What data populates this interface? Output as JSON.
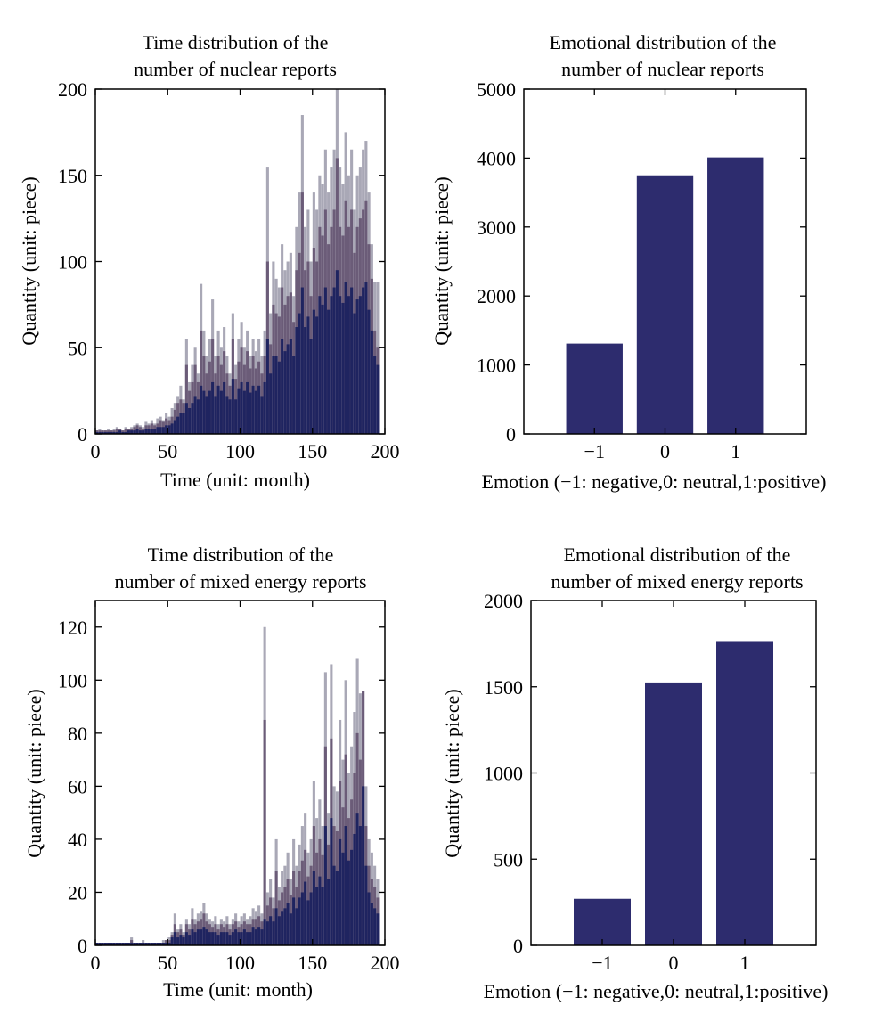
{
  "colors": {
    "bar": "#2d2c6e",
    "hist_front": "#1f2460",
    "hist_mid": "#6b5c78",
    "hist_back": "#a9a8b6"
  },
  "chart_data": [
    {
      "id": "nuclear-time",
      "type": "bar",
      "title": [
        "Time distribution of the",
        "number of nuclear reports"
      ],
      "xlabel": "Time (unit: month)",
      "ylabel": "Quantity (unit: piece)",
      "xlim": [
        0,
        200
      ],
      "ylim": [
        0,
        200
      ],
      "xticks": [
        0,
        50,
        100,
        150,
        200
      ],
      "yticks": [
        0,
        50,
        100,
        150,
        200
      ],
      "xtick_labels": [
        "0",
        "50",
        "100",
        "150",
        "200"
      ],
      "ytick_labels": [
        "0",
        "50",
        "100",
        "150",
        "200"
      ],
      "x": [
        1,
        3,
        5,
        7,
        9,
        11,
        13,
        15,
        17,
        19,
        21,
        23,
        25,
        27,
        29,
        31,
        33,
        35,
        37,
        39,
        41,
        43,
        45,
        47,
        49,
        51,
        53,
        55,
        57,
        59,
        61,
        63,
        65,
        67,
        69,
        71,
        73,
        75,
        77,
        79,
        81,
        83,
        85,
        87,
        89,
        91,
        93,
        95,
        97,
        99,
        101,
        103,
        105,
        107,
        109,
        111,
        113,
        115,
        117,
        119,
        121,
        123,
        125,
        127,
        129,
        131,
        133,
        135,
        137,
        139,
        141,
        143,
        145,
        147,
        149,
        151,
        153,
        155,
        157,
        159,
        161,
        163,
        165,
        167,
        169,
        171,
        173,
        175,
        177,
        179,
        181,
        183,
        185,
        187,
        189,
        191,
        193,
        195
      ],
      "series": [
        {
          "name": "back",
          "values": [
            2,
            3,
            2,
            2,
            3,
            2,
            3,
            4,
            3,
            2,
            4,
            3,
            4,
            5,
            6,
            5,
            4,
            7,
            6,
            8,
            6,
            9,
            10,
            8,
            12,
            10,
            15,
            18,
            22,
            28,
            20,
            55,
            30,
            40,
            50,
            35,
            87,
            60,
            45,
            55,
            78,
            45,
            60,
            50,
            62,
            45,
            35,
            70,
            40,
            55,
            65,
            50,
            60,
            45,
            55,
            48,
            55,
            45,
            60,
            155,
            70,
            100,
            90,
            85,
            110,
            95,
            100,
            105,
            80,
            120,
            140,
            185,
            120,
            130,
            100,
            140,
            130,
            150,
            145,
            165,
            140,
            155,
            165,
            200,
            155,
            145,
            175,
            150,
            165,
            130,
            150,
            155,
            165,
            170,
            140,
            110,
            88,
            88
          ]
        },
        {
          "name": "mid",
          "values": [
            2,
            2,
            2,
            2,
            2,
            2,
            2,
            3,
            3,
            2,
            3,
            3,
            3,
            4,
            5,
            4,
            3,
            5,
            5,
            6,
            5,
            6,
            8,
            7,
            9,
            8,
            10,
            14,
            18,
            20,
            18,
            40,
            25,
            30,
            40,
            30,
            60,
            45,
            35,
            42,
            55,
            35,
            45,
            40,
            48,
            35,
            28,
            55,
            32,
            42,
            50,
            40,
            48,
            38,
            45,
            38,
            42,
            35,
            45,
            100,
            52,
            75,
            70,
            68,
            85,
            75,
            80,
            82,
            65,
            95,
            105,
            140,
            95,
            100,
            80,
            108,
            100,
            120,
            115,
            130,
            110,
            120,
            130,
            160,
            120,
            115,
            135,
            120,
            130,
            105,
            120,
            125,
            130,
            135,
            110,
            90,
            60,
            50
          ]
        },
        {
          "name": "front",
          "values": [
            1,
            1,
            1,
            1,
            1,
            1,
            1,
            1,
            2,
            1,
            1,
            2,
            2,
            2,
            3,
            2,
            2,
            3,
            3,
            3,
            3,
            4,
            4,
            4,
            5,
            5,
            6,
            8,
            10,
            12,
            12,
            18,
            15,
            18,
            22,
            20,
            28,
            25,
            22,
            25,
            30,
            22,
            28,
            25,
            30,
            22,
            20,
            32,
            20,
            26,
            30,
            25,
            30,
            24,
            28,
            25,
            28,
            22,
            30,
            55,
            35,
            45,
            45,
            42,
            55,
            48,
            52,
            55,
            45,
            62,
            70,
            85,
            62,
            68,
            55,
            72,
            68,
            80,
            75,
            85,
            72,
            80,
            85,
            95,
            80,
            76,
            88,
            80,
            85,
            70,
            78,
            80,
            85,
            88,
            72,
            60,
            45,
            40
          ]
        }
      ]
    },
    {
      "id": "nuclear-emotion",
      "type": "bar",
      "title": [
        "Emotional distribution of the",
        "number of nuclear reports"
      ],
      "xlabel": "Emotion (−1: negative,0: neutral,1:positive)",
      "ylabel": "Quantity (unit: piece)",
      "categories": [
        "−1",
        "0",
        "1"
      ],
      "values": [
        1310,
        3750,
        4010
      ],
      "ylim": [
        0,
        5000
      ],
      "yticks": [
        0,
        1000,
        2000,
        3000,
        4000,
        5000
      ],
      "ytick_labels": [
        "0",
        "1000",
        "2000",
        "3000",
        "4000",
        "5000"
      ]
    },
    {
      "id": "mixed-time",
      "type": "bar",
      "title": [
        "Time distribution of the",
        "number of mixed energy reports"
      ],
      "xlabel": "Time (unit: month)",
      "ylabel": "Quantity (unit: piece)",
      "xlim": [
        0,
        200
      ],
      "ylim": [
        0,
        130
      ],
      "xticks": [
        0,
        50,
        100,
        150,
        200
      ],
      "yticks": [
        0,
        20,
        40,
        60,
        80,
        100,
        120
      ],
      "xtick_labels": [
        "0",
        "50",
        "100",
        "150",
        "200"
      ],
      "ytick_labels": [
        "0",
        "20",
        "40",
        "60",
        "80",
        "100",
        "120"
      ],
      "x": [
        1,
        3,
        5,
        7,
        9,
        11,
        13,
        15,
        17,
        19,
        21,
        23,
        25,
        27,
        29,
        31,
        33,
        35,
        37,
        39,
        41,
        43,
        45,
        47,
        49,
        51,
        53,
        55,
        57,
        59,
        61,
        63,
        65,
        67,
        69,
        71,
        73,
        75,
        77,
        79,
        81,
        83,
        85,
        87,
        89,
        91,
        93,
        95,
        97,
        99,
        101,
        103,
        105,
        107,
        109,
        111,
        113,
        115,
        117,
        119,
        121,
        123,
        125,
        127,
        129,
        131,
        133,
        135,
        137,
        139,
        141,
        143,
        145,
        147,
        149,
        151,
        153,
        155,
        157,
        159,
        161,
        163,
        165,
        167,
        169,
        171,
        173,
        175,
        177,
        179,
        181,
        183,
        185,
        187,
        189,
        191,
        193,
        195
      ],
      "series": [
        {
          "name": "back",
          "values": [
            1,
            1,
            1,
            1,
            1,
            1,
            1,
            1,
            1,
            1,
            1,
            1,
            3,
            1,
            1,
            1,
            2,
            1,
            1,
            1,
            1,
            1,
            1,
            2,
            2,
            3,
            5,
            12,
            6,
            8,
            5,
            10,
            8,
            14,
            10,
            12,
            13,
            16,
            12,
            10,
            9,
            11,
            8,
            10,
            9,
            11,
            8,
            10,
            12,
            9,
            11,
            12,
            10,
            11,
            14,
            13,
            15,
            12,
            120,
            20,
            25,
            18,
            40,
            22,
            28,
            30,
            35,
            25,
            40,
            30,
            38,
            45,
            50,
            35,
            40,
            62,
            48,
            55,
            45,
            103,
            50,
            106,
            60,
            58,
            85,
            70,
            100,
            65,
            75,
            88,
            108,
            95,
            96,
            60,
            40,
            35,
            30,
            25
          ]
        },
        {
          "name": "mid",
          "values": [
            1,
            1,
            1,
            1,
            1,
            1,
            1,
            1,
            1,
            1,
            1,
            1,
            2,
            1,
            1,
            1,
            1,
            1,
            1,
            1,
            1,
            1,
            1,
            1,
            2,
            2,
            4,
            8,
            5,
            6,
            4,
            8,
            6,
            10,
            8,
            9,
            10,
            12,
            9,
            8,
            7,
            8,
            6,
            8,
            7,
            8,
            6,
            8,
            9,
            7,
            8,
            9,
            8,
            8,
            10,
            10,
            11,
            9,
            85,
            15,
            18,
            14,
            28,
            17,
            20,
            22,
            25,
            19,
            28,
            22,
            28,
            32,
            36,
            26,
            30,
            45,
            35,
            40,
            34,
            75,
            38,
            78,
            45,
            43,
            62,
            52,
            72,
            48,
            55,
            65,
            80,
            70,
            96,
            45,
            30,
            25,
            22,
            18
          ]
        },
        {
          "name": "front",
          "values": [
            1,
            1,
            1,
            1,
            1,
            1,
            1,
            1,
            1,
            1,
            1,
            1,
            1,
            1,
            1,
            1,
            1,
            1,
            1,
            1,
            1,
            1,
            1,
            1,
            1,
            1,
            3,
            5,
            3,
            4,
            3,
            5,
            4,
            6,
            5,
            6,
            6,
            7,
            6,
            5,
            5,
            5,
            4,
            5,
            5,
            5,
            4,
            5,
            6,
            5,
            5,
            6,
            5,
            5,
            7,
            6,
            7,
            6,
            10,
            9,
            11,
            9,
            14,
            11,
            13,
            14,
            16,
            12,
            18,
            14,
            18,
            20,
            24,
            17,
            20,
            28,
            22,
            26,
            22,
            45,
            25,
            48,
            30,
            28,
            40,
            35,
            45,
            32,
            36,
            42,
            50,
            45,
            60,
            30,
            20,
            16,
            14,
            12
          ]
        }
      ]
    },
    {
      "id": "mixed-emotion",
      "type": "bar",
      "title": [
        "Emotional distribution of the",
        "number of mixed energy reports"
      ],
      "xlabel": "Emotion (−1: negative,0: neutral,1:positive)",
      "ylabel": "Quantity (unit: piece)",
      "categories": [
        "−1",
        "0",
        "1"
      ],
      "values": [
        270,
        1525,
        1765
      ],
      "ylim": [
        0,
        2000
      ],
      "yticks": [
        0,
        500,
        1000,
        1500,
        2000
      ],
      "ytick_labels": [
        "0",
        "500",
        "1000",
        "1500",
        "2000"
      ]
    }
  ]
}
